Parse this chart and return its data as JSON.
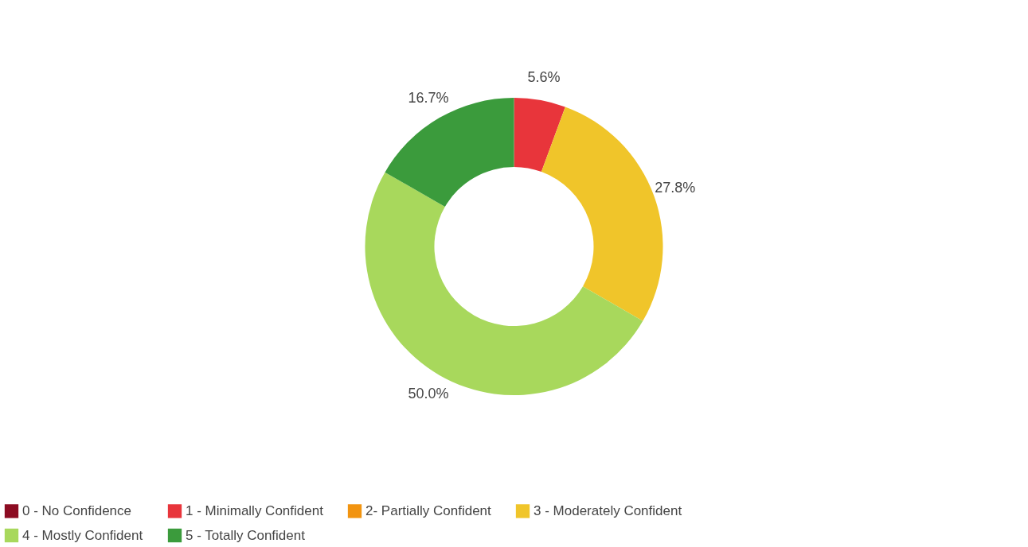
{
  "chart_data": {
    "type": "donut",
    "categories": [
      "0 - No Confidence",
      "1 - Minimally Confident",
      "2- Partially Confident",
      "3 - Moderately Confident",
      "4 - Mostly Confident",
      "5 - Totally Confident"
    ],
    "values": [
      0,
      5.6,
      0,
      27.8,
      50.0,
      16.7
    ],
    "colors": [
      "#8c0c22",
      "#e8353b",
      "#f29410",
      "#f0c52a",
      "#a8d85c",
      "#3b9b3c"
    ],
    "value_labels": [
      null,
      "5.6%",
      null,
      "27.8%",
      "50.0%",
      "16.7%"
    ],
    "legend": "bottom"
  }
}
